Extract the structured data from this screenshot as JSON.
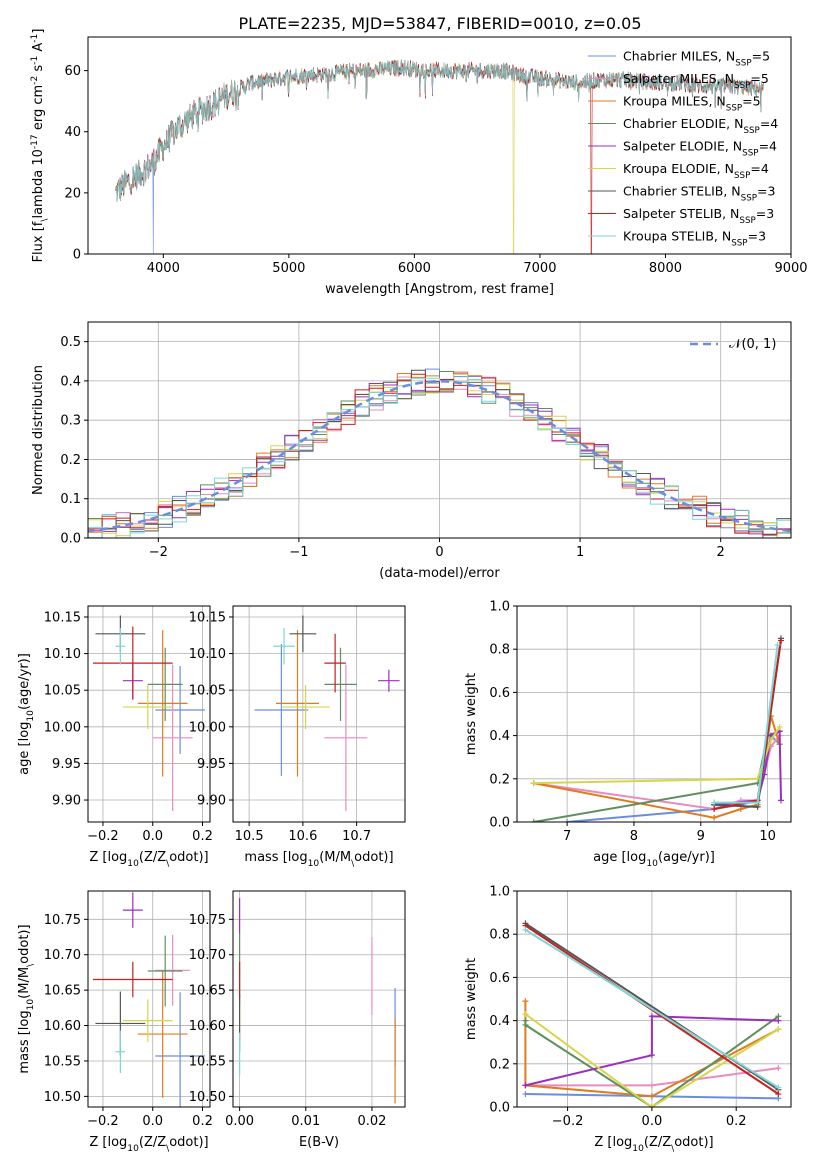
{
  "figure": {
    "title": "PLATE=2235, MJD=53847, FIBERID=0010, z=0.05"
  },
  "series_colors": [
    "#6b8de0",
    "#e88bbf",
    "#e07b20",
    "#5f8f5f",
    "#9a2fbf",
    "#d6d64a",
    "#555555",
    "#c81f1f",
    "#7ed6d6"
  ],
  "chart_data": [
    {
      "id": "spectrum",
      "type": "line",
      "xlabel": "wavelength [Angstrom, rest frame]",
      "ylabel": "Flux [f$_\\lambda 10^{-17}$ erg cm$^{-2}$ s$^{-1}$ A$^{-1}$]",
      "xlim": [
        3400,
        9000
      ],
      "ylim": [
        0,
        71
      ],
      "xticks": [
        4000,
        5000,
        6000,
        7000,
        8000,
        9000
      ],
      "yticks": [
        0,
        20,
        40,
        60
      ],
      "grid": false,
      "legend_position": "top-right",
      "series": [
        {
          "name": "Chabrier MILES",
          "nssp": "5"
        },
        {
          "name": "Salpeter MILES",
          "nssp": "5"
        },
        {
          "name": "Kroupa MILES",
          "nssp": "5"
        },
        {
          "name": "Chabrier ELODIE",
          "nssp": "4"
        },
        {
          "name": "Salpeter ELODIE",
          "nssp": "4"
        },
        {
          "name": "Kroupa ELODIE",
          "nssp": "4"
        },
        {
          "name": "Chabrier STELIB",
          "nssp": "3"
        },
        {
          "name": "Salpeter STELIB",
          "nssp": "3"
        },
        {
          "name": "Kroupa STELIB",
          "nssp": "3"
        }
      ],
      "continuum": {
        "x": [
          3620,
          3700,
          3800,
          3900,
          4000,
          4100,
          4200,
          4300,
          4400,
          4500,
          4700,
          5000,
          5300,
          5600,
          5900,
          6100,
          6300,
          6500,
          6700,
          6900,
          7100,
          7300,
          7500,
          7700,
          7900,
          8100,
          8300,
          8500,
          8780
        ],
        "y": [
          20,
          23,
          26,
          29,
          35,
          41,
          44,
          47,
          49,
          52,
          56,
          58,
          59,
          60,
          61,
          60,
          60,
          60,
          60,
          58,
          57,
          56,
          57,
          57,
          56,
          56,
          55,
          55,
          54
        ]
      },
      "cutoffs": [
        {
          "series": 0,
          "drop_x": 3920
        },
        {
          "series": 5,
          "drop_x": 6790
        },
        {
          "series": 7,
          "drop_x": 7410
        }
      ]
    },
    {
      "id": "residuals",
      "type": "histogram",
      "xlabel": "(data-model)/error",
      "ylabel": "Normed distribution",
      "xlim": [
        -2.5,
        2.5
      ],
      "ylim": [
        0,
        0.55
      ],
      "xticks": [
        -2,
        -1,
        0,
        1,
        2
      ],
      "yticks": [
        0.0,
        0.1,
        0.2,
        0.3,
        0.4,
        0.5
      ],
      "grid": true,
      "bin_width": 0.1,
      "reference_curve": {
        "name": "$\\mathcal{N}(0,1)$",
        "mean": 0,
        "sigma": 1,
        "color": "#6b8de0"
      },
      "legend_position": "top-right"
    },
    {
      "id": "age-vs-Z",
      "type": "errorbar",
      "xlabel": "Z [log$_{10}$($Z/Z_\\odot$)]",
      "ylabel": "age  [log$_{10}$($age/yr$)]",
      "xlim": [
        -0.26,
        0.23
      ],
      "ylim": [
        9.87,
        10.165
      ],
      "xticks": [
        -0.2,
        0.0,
        0.2
      ],
      "yticks": [
        9.9,
        9.95,
        10.0,
        10.05,
        10.1,
        10.15
      ],
      "grid": true,
      "points": [
        {
          "series": 0,
          "x": 0.11,
          "y": 10.023,
          "xerr": 0.1,
          "yerr": 0.06
        },
        {
          "series": 1,
          "x": 0.08,
          "y": 9.985,
          "xerr": 0.08,
          "yerr": 0.1
        },
        {
          "series": 2,
          "x": 0.04,
          "y": 10.032,
          "xerr": 0.1,
          "yerr": 0.1
        },
        {
          "series": 3,
          "x": 0.05,
          "y": 10.058,
          "xerr": 0.07,
          "yerr": 0.05
        },
        {
          "series": 4,
          "x": -0.08,
          "y": 10.063,
          "xerr": 0.04,
          "yerr": 0.025
        },
        {
          "series": 5,
          "x": -0.02,
          "y": 10.027,
          "xerr": 0.1,
          "yerr": 0.03
        },
        {
          "series": 6,
          "x": -0.13,
          "y": 10.127,
          "xerr": 0.1,
          "yerr": 0.025
        },
        {
          "series": 7,
          "x": -0.08,
          "y": 10.087,
          "xerr": 0.16,
          "yerr": 0.05
        },
        {
          "series": 8,
          "x": -0.13,
          "y": 10.11,
          "xerr": 0.02,
          "yerr": 0.025
        }
      ]
    },
    {
      "id": "age-vs-mass",
      "type": "errorbar",
      "xlabel": "mass [log$_{10}$($M/M_\\odot$)]",
      "xlim": [
        10.47,
        10.79
      ],
      "ylim": [
        9.87,
        10.165
      ],
      "xticks": [
        10.5,
        10.6,
        10.7
      ],
      "yticks": [
        9.9,
        9.95,
        10.0,
        10.05,
        10.1,
        10.15
      ],
      "grid": true,
      "points": [
        {
          "series": 0,
          "x": 10.56,
          "y": 10.023,
          "xerr": 0.05,
          "yerr": 0.09
        },
        {
          "series": 1,
          "x": 10.68,
          "y": 9.985,
          "xerr": 0.04,
          "yerr": 0.1
        },
        {
          "series": 2,
          "x": 10.59,
          "y": 10.032,
          "xerr": 0.04,
          "yerr": 0.1
        },
        {
          "series": 3,
          "x": 10.67,
          "y": 10.058,
          "xerr": 0.03,
          "yerr": 0.05
        },
        {
          "series": 4,
          "x": 10.76,
          "y": 10.063,
          "xerr": 0.02,
          "yerr": 0.015
        },
        {
          "series": 5,
          "x": 10.605,
          "y": 10.027,
          "xerr": 0.045,
          "yerr": 0.03
        },
        {
          "series": 6,
          "x": 10.6,
          "y": 10.127,
          "xerr": 0.025,
          "yerr": 0.025
        },
        {
          "series": 7,
          "x": 10.66,
          "y": 10.087,
          "xerr": 0.02,
          "yerr": 0.04
        },
        {
          "series": 8,
          "x": 10.565,
          "y": 10.11,
          "xerr": 0.02,
          "yerr": 0.025
        }
      ]
    },
    {
      "id": "weight-vs-age",
      "type": "line",
      "xlabel": "age  [log$_{10}$($age/yr$)]",
      "ylabel": "mass weight",
      "xlim": [
        6.25,
        10.35
      ],
      "ylim": [
        0,
        1
      ],
      "xticks": [
        7,
        8,
        9,
        10
      ],
      "yticks": [
        0.0,
        0.2,
        0.4,
        0.6,
        0.8,
        1.0
      ],
      "grid": true,
      "series": [
        {
          "series": 0,
          "x": [
            7.0,
            9.2,
            9.6,
            9.85,
            10.05,
            10.18
          ],
          "y": [
            0.0,
            0.06,
            0.08,
            0.1,
            0.4,
            0.36
          ]
        },
        {
          "series": 1,
          "x": [
            6.5,
            9.2,
            9.6,
            9.85,
            10.05,
            10.18
          ],
          "y": [
            0.18,
            0.06,
            0.1,
            0.1,
            0.35,
            0.4
          ]
        },
        {
          "series": 2,
          "x": [
            6.5,
            9.2,
            9.6,
            9.85,
            10.05,
            10.18
          ],
          "y": [
            0.18,
            0.02,
            0.06,
            0.08,
            0.49,
            0.36
          ]
        },
        {
          "series": 3,
          "x": [
            6.5,
            9.85,
            10.0,
            10.18
          ],
          "y": [
            0.0,
            0.18,
            0.4,
            0.42
          ]
        },
        {
          "series": 4,
          "x": [
            9.2,
            9.85,
            9.95,
            10.05,
            10.18,
            10.2
          ],
          "y": [
            0.08,
            0.1,
            0.22,
            0.4,
            0.42,
            0.1
          ]
        },
        {
          "series": 5,
          "x": [
            6.5,
            9.85,
            10.05,
            10.18
          ],
          "y": [
            0.18,
            0.2,
            0.38,
            0.44
          ]
        },
        {
          "series": 6,
          "x": [
            9.2,
            9.85,
            10.2
          ],
          "y": [
            0.08,
            0.07,
            0.85
          ]
        },
        {
          "series": 7,
          "x": [
            9.2,
            9.85,
            10.2
          ],
          "y": [
            0.06,
            0.1,
            0.84
          ]
        },
        {
          "series": 8,
          "x": [
            9.2,
            9.85,
            10.15
          ],
          "y": [
            0.09,
            0.09,
            0.82
          ]
        }
      ]
    },
    {
      "id": "mass-vs-Z",
      "type": "errorbar",
      "xlabel": "Z [log$_{10}$($Z/Z_\\odot$)]",
      "ylabel": "mass [log$_{10}$($M/M_\\odot$)]",
      "xlim": [
        -0.26,
        0.23
      ],
      "ylim": [
        10.485,
        10.79
      ],
      "xticks": [
        -0.2,
        0.0,
        0.2
      ],
      "yticks": [
        10.5,
        10.55,
        10.6,
        10.65,
        10.7,
        10.75
      ],
      "grid": true,
      "points": [
        {
          "series": 0,
          "x": 0.11,
          "y": 10.557,
          "xerr": 0.1,
          "yerr": 0.09
        },
        {
          "series": 1,
          "x": 0.08,
          "y": 10.678,
          "xerr": 0.07,
          "yerr": 0.05
        },
        {
          "series": 2,
          "x": 0.04,
          "y": 10.588,
          "xerr": 0.1,
          "yerr": 0.09
        },
        {
          "series": 3,
          "x": 0.05,
          "y": 10.677,
          "xerr": 0.07,
          "yerr": 0.05
        },
        {
          "series": 4,
          "x": -0.08,
          "y": 10.763,
          "xerr": 0.04,
          "yerr": 0.025
        },
        {
          "series": 5,
          "x": -0.02,
          "y": 10.607,
          "xerr": 0.1,
          "yerr": 0.03
        },
        {
          "series": 6,
          "x": -0.13,
          "y": 10.603,
          "xerr": 0.1,
          "yerr": 0.045
        },
        {
          "series": 7,
          "x": -0.08,
          "y": 10.665,
          "xerr": 0.16,
          "yerr": 0.025
        },
        {
          "series": 8,
          "x": -0.13,
          "y": 10.563,
          "xerr": 0.02,
          "yerr": 0.03
        }
      ]
    },
    {
      "id": "mass-vs-EBV",
      "type": "errorbar",
      "xlabel": "E(B-V)",
      "xlim": [
        -0.001,
        0.025
      ],
      "ylim": [
        10.485,
        10.79
      ],
      "xticks": [
        0.0,
        0.01,
        0.02
      ],
      "yticks": [
        10.5,
        10.55,
        10.6,
        10.65,
        10.7,
        10.75
      ],
      "grid": true,
      "points": [
        {
          "series": 0,
          "x": 0.0235,
          "y": 10.598,
          "xerr": 0,
          "yerr": 0.055
        },
        {
          "series": 1,
          "x": 0.02,
          "y": 10.67,
          "xerr": 0,
          "yerr": 0.055
        },
        {
          "series": 2,
          "x": 0.0235,
          "y": 10.55,
          "xerr": 0,
          "yerr": 0.06
        },
        {
          "series": 3,
          "x": 0.0,
          "y": 10.68,
          "xerr": 0,
          "yerr": 0.05
        },
        {
          "series": 4,
          "x": 0.0,
          "y": 10.755,
          "xerr": 0,
          "yerr": 0.025
        },
        {
          "series": 5,
          "x": 0.0,
          "y": 10.607,
          "xerr": 0,
          "yerr": 0.025
        },
        {
          "series": 6,
          "x": 0.0,
          "y": 10.603,
          "xerr": 0,
          "yerr": 0.04
        },
        {
          "series": 7,
          "x": 0.0,
          "y": 10.665,
          "xerr": 0,
          "yerr": 0.025
        },
        {
          "series": 8,
          "x": 0.0,
          "y": 10.56,
          "xerr": 0,
          "yerr": 0.03
        }
      ]
    },
    {
      "id": "weight-vs-Z",
      "type": "line",
      "xlabel": "Z [log$_{10}$($Z/Z_\\odot$)]",
      "ylabel": "mass weight",
      "xlim": [
        -0.32,
        0.33
      ],
      "ylim": [
        0,
        1
      ],
      "xticks": [
        -0.2,
        0.0,
        0.2
      ],
      "yticks": [
        0.0,
        0.2,
        0.4,
        0.6,
        0.8,
        1.0
      ],
      "grid": true,
      "series": [
        {
          "series": 0,
          "x": [
            -0.3,
            0.0,
            0.3
          ],
          "y": [
            0.06,
            0.05,
            0.04
          ]
        },
        {
          "series": 1,
          "x": [
            -0.3,
            0.0,
            0.3
          ],
          "y": [
            0.1,
            0.1,
            0.18
          ]
        },
        {
          "series": 2,
          "x": [
            -0.3,
            -0.3,
            0.0,
            0.3
          ],
          "y": [
            0.49,
            0.1,
            0.05,
            0.36
          ]
        },
        {
          "series": 3,
          "x": [
            -0.3,
            -0.3,
            0.0,
            0.3
          ],
          "y": [
            0.4,
            0.38,
            0.0,
            0.42
          ]
        },
        {
          "series": 4,
          "x": [
            -0.3,
            0.0,
            0.0,
            0.3
          ],
          "y": [
            0.1,
            0.24,
            0.42,
            0.4
          ]
        },
        {
          "series": 5,
          "x": [
            -0.3,
            0.0,
            0.3
          ],
          "y": [
            0.43,
            0.0,
            0.36
          ]
        },
        {
          "series": 6,
          "x": [
            -0.3,
            0.3
          ],
          "y": [
            0.85,
            0.08
          ]
        },
        {
          "series": 7,
          "x": [
            -0.3,
            0.3
          ],
          "y": [
            0.84,
            0.06
          ]
        },
        {
          "series": 8,
          "x": [
            -0.3,
            0.3
          ],
          "y": [
            0.82,
            0.09
          ]
        }
      ]
    }
  ]
}
